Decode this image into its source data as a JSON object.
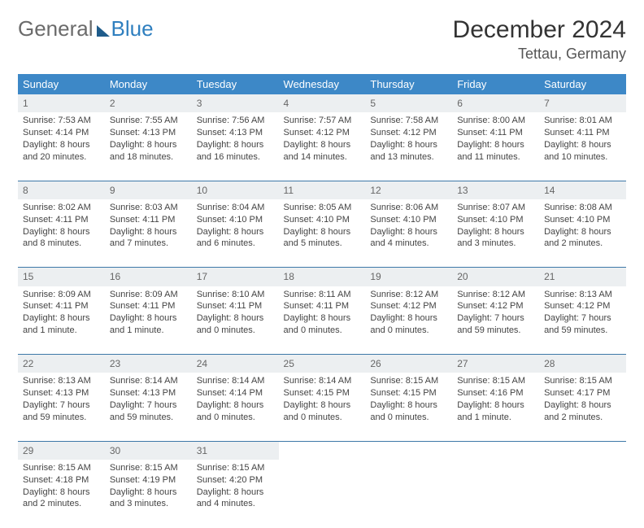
{
  "logo": {
    "general": "General",
    "blue": "Blue"
  },
  "title": "December 2024",
  "location": "Tettau, Germany",
  "weekdays": [
    "Sunday",
    "Monday",
    "Tuesday",
    "Wednesday",
    "Thursday",
    "Friday",
    "Saturday"
  ],
  "colors": {
    "header_bg": "#3d88c7",
    "header_text": "#ffffff",
    "daynum_bg": "#eceff1",
    "border": "#3d78a8",
    "logo_gray": "#6b6b6b",
    "logo_blue": "#2f7fbf"
  },
  "weeks": [
    [
      {
        "n": "1",
        "sunrise": "7:53 AM",
        "sunset": "4:14 PM",
        "daylight": "8 hours and 20 minutes."
      },
      {
        "n": "2",
        "sunrise": "7:55 AM",
        "sunset": "4:13 PM",
        "daylight": "8 hours and 18 minutes."
      },
      {
        "n": "3",
        "sunrise": "7:56 AM",
        "sunset": "4:13 PM",
        "daylight": "8 hours and 16 minutes."
      },
      {
        "n": "4",
        "sunrise": "7:57 AM",
        "sunset": "4:12 PM",
        "daylight": "8 hours and 14 minutes."
      },
      {
        "n": "5",
        "sunrise": "7:58 AM",
        "sunset": "4:12 PM",
        "daylight": "8 hours and 13 minutes."
      },
      {
        "n": "6",
        "sunrise": "8:00 AM",
        "sunset": "4:11 PM",
        "daylight": "8 hours and 11 minutes."
      },
      {
        "n": "7",
        "sunrise": "8:01 AM",
        "sunset": "4:11 PM",
        "daylight": "8 hours and 10 minutes."
      }
    ],
    [
      {
        "n": "8",
        "sunrise": "8:02 AM",
        "sunset": "4:11 PM",
        "daylight": "8 hours and 8 minutes."
      },
      {
        "n": "9",
        "sunrise": "8:03 AM",
        "sunset": "4:11 PM",
        "daylight": "8 hours and 7 minutes."
      },
      {
        "n": "10",
        "sunrise": "8:04 AM",
        "sunset": "4:10 PM",
        "daylight": "8 hours and 6 minutes."
      },
      {
        "n": "11",
        "sunrise": "8:05 AM",
        "sunset": "4:10 PM",
        "daylight": "8 hours and 5 minutes."
      },
      {
        "n": "12",
        "sunrise": "8:06 AM",
        "sunset": "4:10 PM",
        "daylight": "8 hours and 4 minutes."
      },
      {
        "n": "13",
        "sunrise": "8:07 AM",
        "sunset": "4:10 PM",
        "daylight": "8 hours and 3 minutes."
      },
      {
        "n": "14",
        "sunrise": "8:08 AM",
        "sunset": "4:10 PM",
        "daylight": "8 hours and 2 minutes."
      }
    ],
    [
      {
        "n": "15",
        "sunrise": "8:09 AM",
        "sunset": "4:11 PM",
        "daylight": "8 hours and 1 minute."
      },
      {
        "n": "16",
        "sunrise": "8:09 AM",
        "sunset": "4:11 PM",
        "daylight": "8 hours and 1 minute."
      },
      {
        "n": "17",
        "sunrise": "8:10 AM",
        "sunset": "4:11 PM",
        "daylight": "8 hours and 0 minutes."
      },
      {
        "n": "18",
        "sunrise": "8:11 AM",
        "sunset": "4:11 PM",
        "daylight": "8 hours and 0 minutes."
      },
      {
        "n": "19",
        "sunrise": "8:12 AM",
        "sunset": "4:12 PM",
        "daylight": "8 hours and 0 minutes."
      },
      {
        "n": "20",
        "sunrise": "8:12 AM",
        "sunset": "4:12 PM",
        "daylight": "7 hours and 59 minutes."
      },
      {
        "n": "21",
        "sunrise": "8:13 AM",
        "sunset": "4:12 PM",
        "daylight": "7 hours and 59 minutes."
      }
    ],
    [
      {
        "n": "22",
        "sunrise": "8:13 AM",
        "sunset": "4:13 PM",
        "daylight": "7 hours and 59 minutes."
      },
      {
        "n": "23",
        "sunrise": "8:14 AM",
        "sunset": "4:13 PM",
        "daylight": "7 hours and 59 minutes."
      },
      {
        "n": "24",
        "sunrise": "8:14 AM",
        "sunset": "4:14 PM",
        "daylight": "8 hours and 0 minutes."
      },
      {
        "n": "25",
        "sunrise": "8:14 AM",
        "sunset": "4:15 PM",
        "daylight": "8 hours and 0 minutes."
      },
      {
        "n": "26",
        "sunrise": "8:15 AM",
        "sunset": "4:15 PM",
        "daylight": "8 hours and 0 minutes."
      },
      {
        "n": "27",
        "sunrise": "8:15 AM",
        "sunset": "4:16 PM",
        "daylight": "8 hours and 1 minute."
      },
      {
        "n": "28",
        "sunrise": "8:15 AM",
        "sunset": "4:17 PM",
        "daylight": "8 hours and 2 minutes."
      }
    ],
    [
      {
        "n": "29",
        "sunrise": "8:15 AM",
        "sunset": "4:18 PM",
        "daylight": "8 hours and 2 minutes."
      },
      {
        "n": "30",
        "sunrise": "8:15 AM",
        "sunset": "4:19 PM",
        "daylight": "8 hours and 3 minutes."
      },
      {
        "n": "31",
        "sunrise": "8:15 AM",
        "sunset": "4:20 PM",
        "daylight": "8 hours and 4 minutes."
      },
      null,
      null,
      null,
      null
    ]
  ],
  "labels": {
    "sunrise": "Sunrise: ",
    "sunset": "Sunset: ",
    "daylight": "Daylight: "
  }
}
